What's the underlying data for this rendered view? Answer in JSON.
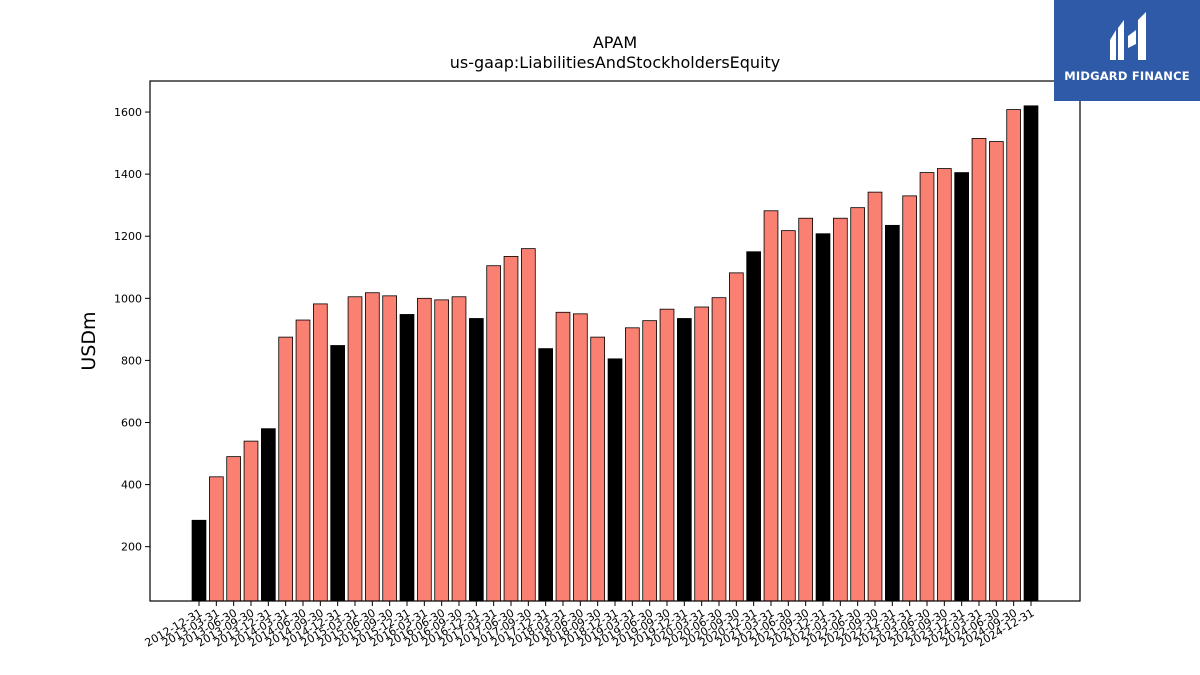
{
  "logo": {
    "text": "MIDGARD FINANCE",
    "bg": "#2f5aa8",
    "icon": "midgard-logo-icon"
  },
  "colors": {
    "annual": "#000000",
    "quarterly": "#fa8072",
    "edge": "#000000"
  },
  "chart_data": {
    "type": "bar",
    "title": "APAM",
    "subtitle": "us-gaap:LiabilitiesAndStockholdersEquity",
    "xlabel": "",
    "ylabel": "USDm",
    "ylim": [
      25,
      1700
    ],
    "yticks": [
      200,
      400,
      600,
      800,
      1000,
      1200,
      1400,
      1600
    ],
    "grid": false,
    "categories": [
      "2012-12-31",
      "2013-03-31",
      "2013-06-30",
      "2013-09-30",
      "2013-12-31",
      "2014-03-31",
      "2014-06-30",
      "2014-09-30",
      "2014-12-31",
      "2015-03-31",
      "2015-06-30",
      "2015-09-30",
      "2015-12-31",
      "2016-03-31",
      "2016-06-30",
      "2016-09-30",
      "2016-12-31",
      "2017-03-31",
      "2017-06-30",
      "2017-09-30",
      "2017-12-31",
      "2018-03-31",
      "2018-06-30",
      "2018-09-30",
      "2018-12-31",
      "2019-03-31",
      "2019-06-30",
      "2019-09-30",
      "2019-12-31",
      "2020-03-31",
      "2020-06-30",
      "2020-09-30",
      "2020-12-31",
      "2021-03-31",
      "2021-06-30",
      "2021-09-30",
      "2021-12-31",
      "2022-03-31",
      "2022-06-30",
      "2022-09-30",
      "2022-12-31",
      "2023-03-31",
      "2023-06-30",
      "2023-09-30",
      "2023-12-31",
      "2024-03-31",
      "2024-06-30",
      "2024-09-30",
      "2024-12-31"
    ],
    "values": [
      285,
      425,
      490,
      540,
      580,
      875,
      930,
      982,
      848,
      1005,
      1018,
      1008,
      948,
      1000,
      995,
      1005,
      935,
      1105,
      1135,
      1160,
      838,
      955,
      950,
      875,
      805,
      905,
      928,
      965,
      935,
      972,
      1002,
      1082,
      1150,
      1282,
      1218,
      1258,
      1208,
      1258,
      1292,
      1342,
      1235,
      1330,
      1405,
      1418,
      1405,
      1515,
      1505,
      1608,
      1620
    ],
    "annual_flags": [
      1,
      0,
      0,
      0,
      1,
      0,
      0,
      0,
      1,
      0,
      0,
      0,
      1,
      0,
      0,
      0,
      1,
      0,
      0,
      0,
      1,
      0,
      0,
      0,
      1,
      0,
      0,
      0,
      1,
      0,
      0,
      0,
      1,
      0,
      0,
      0,
      1,
      0,
      0,
      0,
      1,
      0,
      0,
      0,
      1,
      0,
      0,
      0,
      1
    ]
  }
}
